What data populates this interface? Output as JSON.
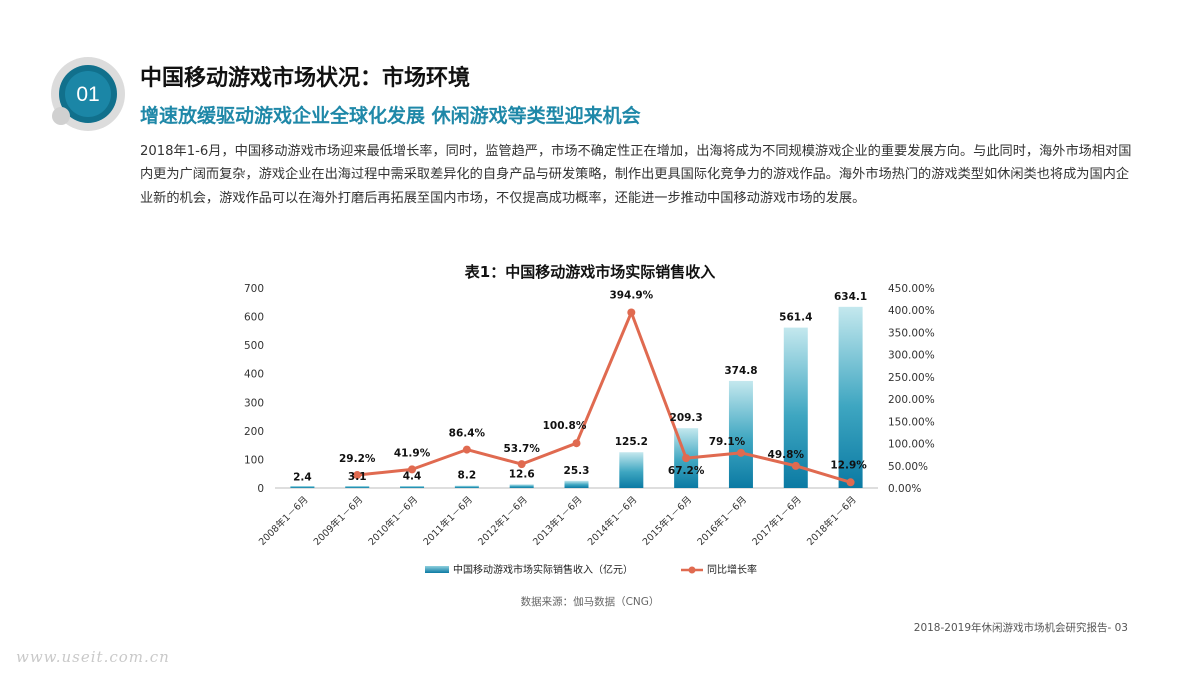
{
  "header": {
    "section_number": "01",
    "title": "中国移动游戏市场状况：市场环境",
    "subtitle": "增速放缓驱动游戏企业全球化发展 休闲游戏等类型迎来机会",
    "paragraph": "2018年1-6月，中国移动游戏市场迎来最低增长率，同时，监管趋严，市场不确定性正在增加，出海将成为不同规模游戏企业的重要发展方向。与此同时，海外市场相对国内更为广阔而复杂，游戏企业在出海过程中需采取差异化的自身产品与研发策略，制作出更具国际化竞争力的游戏作品。海外市场热门的游戏类型如休闲类也将成为国内企业新的机会，游戏作品可以在海外打磨后再拓展至国内市场，不仅提高成功概率，还能进一步推动中国移动游戏市场的发展。"
  },
  "chart_data": {
    "type": "bar",
    "title": "表1：中国移动游戏市场实际销售收入",
    "categories": [
      "2008年1－6月",
      "2009年1－6月",
      "2010年1－6月",
      "2011年1－6月",
      "2012年1－6月",
      "2013年1－6月",
      "2014年1－6月",
      "2015年1－6月",
      "2016年1－6月",
      "2017年1－6月",
      "2018年1－6月"
    ],
    "series": [
      {
        "name": "中国移动游戏市场实际销售收入（亿元）",
        "type": "bar",
        "axis": "left",
        "values": [
          2.4,
          3.1,
          4.4,
          8.2,
          12.6,
          25.3,
          125.2,
          209.3,
          374.8,
          561.4,
          634.1
        ],
        "labels": [
          "2.4",
          "3.1",
          "4.4",
          "8.2",
          "12.6",
          "25.3",
          "125.2",
          "209.3",
          "374.8",
          "561.4",
          "634.1"
        ]
      },
      {
        "name": "同比增长率",
        "type": "line",
        "axis": "right",
        "values": [
          null,
          29.2,
          41.9,
          86.4,
          53.7,
          100.8,
          394.9,
          67.2,
          79.1,
          49.8,
          12.9
        ],
        "labels": [
          "",
          "29.2%",
          "41.9%",
          "86.4%",
          "53.7%",
          "100.8%",
          "394.9%",
          "67.2%",
          "79.1%",
          "49.8%",
          "12.9%"
        ]
      }
    ],
    "y_left": {
      "lim": [
        0,
        700
      ],
      "ticks": [
        "0",
        "100",
        "200",
        "300",
        "400",
        "500",
        "600",
        "700"
      ]
    },
    "y_right": {
      "lim": [
        0,
        450
      ],
      "ticks": [
        "0.00%",
        "50.00%",
        "100.00%",
        "150.00%",
        "200.00%",
        "250.00%",
        "300.00%",
        "350.00%",
        "400.00%",
        "450.00%"
      ]
    },
    "legend_position": "bottom",
    "colors": {
      "bar_top": "#bfe7ec",
      "bar_bottom": "#0a7aa3",
      "line": "#e06a50"
    }
  },
  "source": "数据来源：伽马数据（CNG）",
  "footer": "2018-2019年休闲游戏市场机会研究报告- 03",
  "watermark": "www.useit.com.cn"
}
